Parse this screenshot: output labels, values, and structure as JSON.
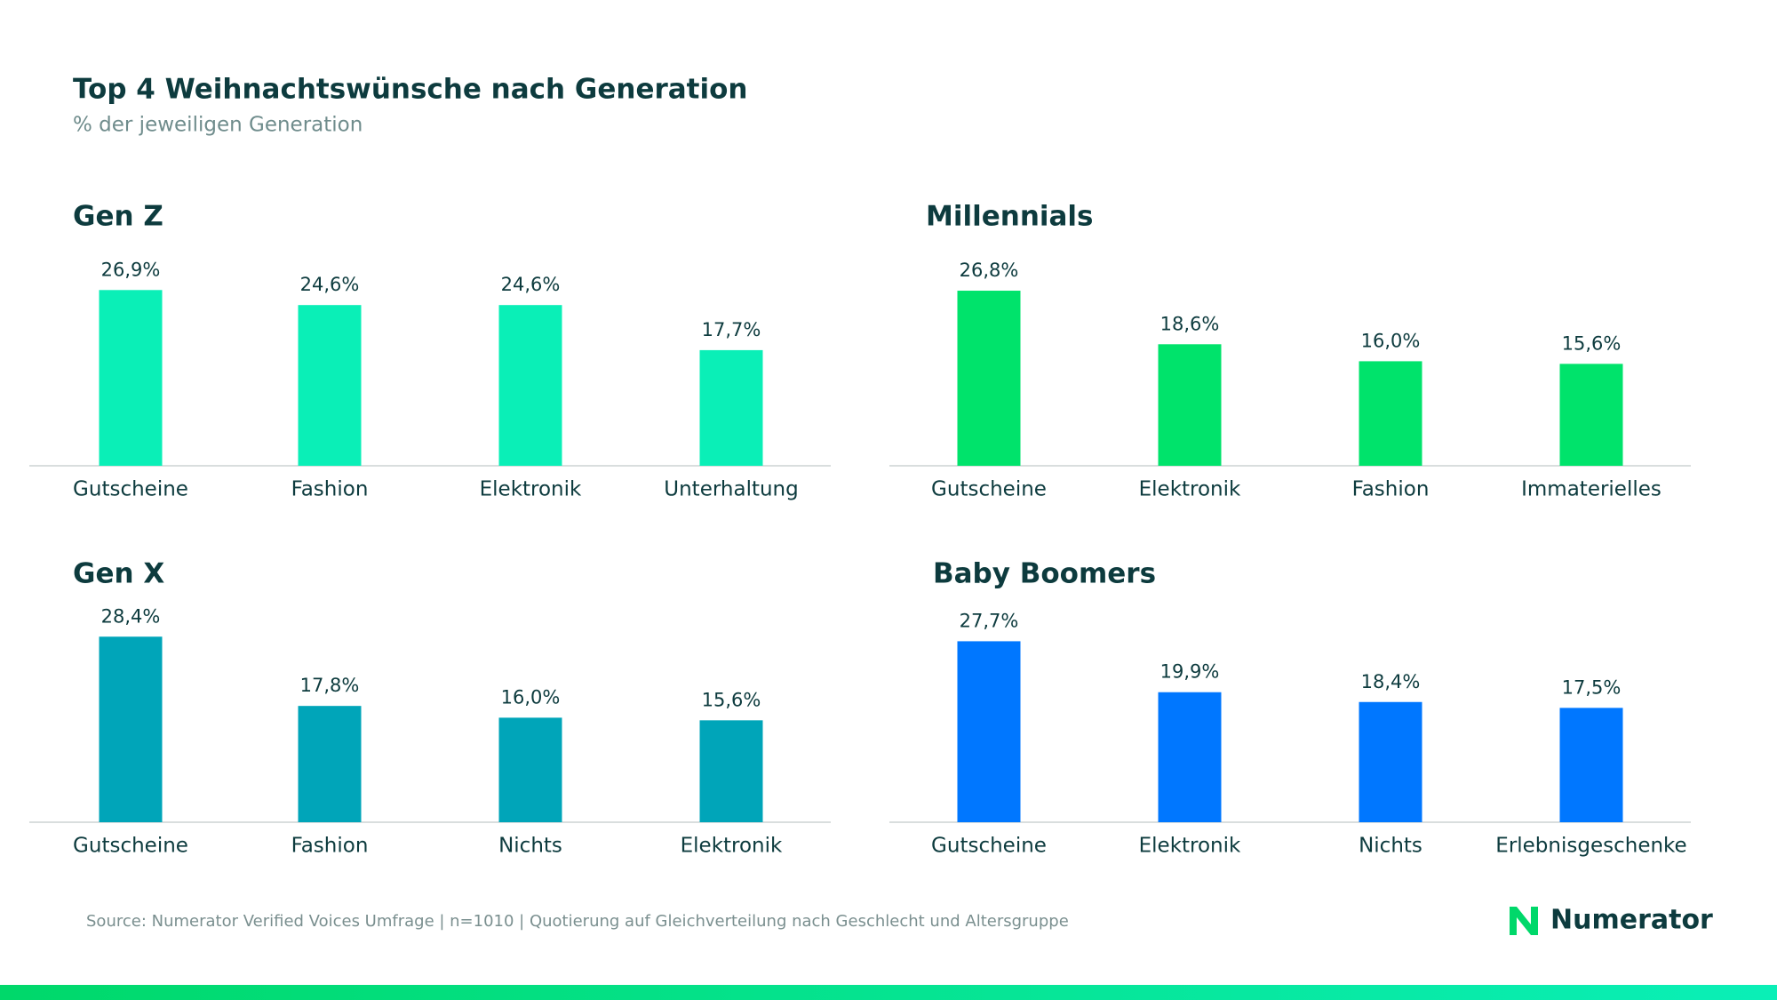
{
  "title": "Top 4 Weihnachtswünsche nach Generation",
  "subtitle": "% der jeweiligen Generation",
  "chart_data": [
    {
      "type": "bar",
      "title": "Gen Z",
      "categories": [
        "Gutscheine",
        "Fashion",
        "Elektronik",
        "Unterhaltung"
      ],
      "values": [
        26.9,
        24.6,
        24.6,
        17.7
      ],
      "value_labels": [
        "26,9%",
        "24,6%",
        "24,6%",
        "17,7%"
      ],
      "color": "#0aefb7"
    },
    {
      "type": "bar",
      "title": "Millennials",
      "categories": [
        "Gutscheine",
        "Elektronik",
        "Fashion",
        "Immaterielles"
      ],
      "values": [
        26.8,
        18.6,
        16.0,
        15.6
      ],
      "value_labels": [
        "26,8%",
        "18,6%",
        "16,0%",
        "15,6%"
      ],
      "color": "#00e36b"
    },
    {
      "type": "bar",
      "title": "Gen X",
      "categories": [
        "Gutscheine",
        "Fashion",
        "Nichts",
        "Elektronik"
      ],
      "values": [
        28.4,
        17.8,
        16.0,
        15.6
      ],
      "value_labels": [
        "28,4%",
        "17,8%",
        "16,0%",
        "15,6%"
      ],
      "color": "#00a5b9"
    },
    {
      "type": "bar",
      "title": "Baby Boomers",
      "categories": [
        "Gutscheine",
        "Elektronik",
        "Nichts",
        "Erlebnisgeschenke"
      ],
      "values": [
        27.7,
        19.9,
        18.4,
        17.5
      ],
      "value_labels": [
        "27,7%",
        "19,9%",
        "18,4%",
        "17,5%"
      ],
      "color": "#0077ff"
    }
  ],
  "source": "Source: Numerator Verified Voices Umfrage | n=1010 | Quotierung auf Gleichverteilung nach Geschlecht und Altersgruppe",
  "brand": "Numerator"
}
